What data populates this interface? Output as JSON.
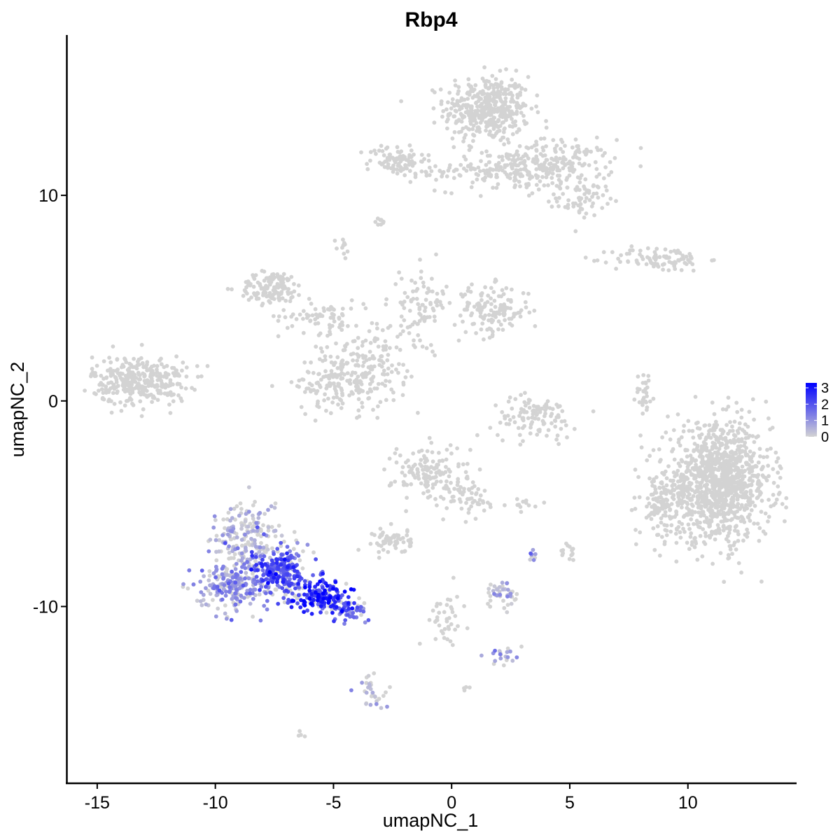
{
  "chart_data": {
    "type": "scatter",
    "title": "Rbp4",
    "xlabel": "umapNC_1",
    "ylabel": "umapNC_2",
    "xlim": [
      -16.3,
      14.6
    ],
    "ylim": [
      -18.6,
      17.8
    ],
    "x_ticks": [
      -15,
      -10,
      -5,
      0,
      5,
      10
    ],
    "x_tick_labels": [
      "-15",
      "-10",
      "-5",
      "0",
      "5",
      "10"
    ],
    "y_ticks": [
      -10,
      0,
      10
    ],
    "y_tick_labels": [
      "-10",
      "0",
      "10"
    ],
    "grid": false,
    "legend": {
      "position": "right",
      "type": "colorbar",
      "min": 0,
      "max": 3.3,
      "ticks": [
        0,
        1,
        2,
        3
      ],
      "tick_labels": [
        "0",
        "1",
        "2",
        "3"
      ],
      "low_color": "#D3D3D3",
      "high_color": "#0000FF"
    },
    "point_color_low": "#D3D3D3",
    "point_color_high": "#0000FF",
    "clusters": [
      {
        "cx": 1.5,
        "cy": 14.2,
        "sx": 0.9,
        "sy": 0.8,
        "n": 420,
        "expr": 0
      },
      {
        "cx": 4.4,
        "cy": 11.5,
        "sx": 1.2,
        "sy": 0.6,
        "n": 200,
        "expr": 0
      },
      {
        "cx": 5.5,
        "cy": 9.8,
        "sx": 0.5,
        "sy": 0.4,
        "n": 60,
        "expr": 0
      },
      {
        "cx": 2.2,
        "cy": 11.2,
        "sx": 1.4,
        "sy": 0.5,
        "n": 120,
        "expr": 0
      },
      {
        "cx": -2.3,
        "cy": 11.7,
        "sx": 0.6,
        "sy": 0.4,
        "n": 90,
        "expr": 0
      },
      {
        "cx": -0.3,
        "cy": 11.2,
        "sx": 0.5,
        "sy": 0.2,
        "n": 25,
        "expr": 0
      },
      {
        "cx": -3.0,
        "cy": 8.7,
        "sx": 0.15,
        "sy": 0.1,
        "n": 8,
        "expr": 0
      },
      {
        "cx": -4.6,
        "cy": 7.4,
        "sx": 0.15,
        "sy": 0.3,
        "n": 10,
        "expr": 0
      },
      {
        "cx": 8.8,
        "cy": 6.9,
        "sx": 1.0,
        "sy": 0.3,
        "n": 90,
        "expr": 0
      },
      {
        "cx": -7.6,
        "cy": 5.5,
        "sx": 0.7,
        "sy": 0.4,
        "n": 130,
        "expr": 0
      },
      {
        "cx": -5.5,
        "cy": 4.1,
        "sx": 0.9,
        "sy": 0.4,
        "n": 70,
        "expr": 0
      },
      {
        "cx": -1.2,
        "cy": 4.8,
        "sx": 0.5,
        "sy": 0.9,
        "n": 80,
        "expr": 0
      },
      {
        "cx": 1.7,
        "cy": 4.4,
        "sx": 0.8,
        "sy": 0.6,
        "n": 140,
        "expr": 0
      },
      {
        "cx": -3.3,
        "cy": 2.3,
        "sx": 0.9,
        "sy": 1.0,
        "n": 110,
        "expr": 0
      },
      {
        "cx": -4.6,
        "cy": 0.9,
        "sx": 1.0,
        "sy": 0.7,
        "n": 180,
        "expr": 0
      },
      {
        "cx": -13.2,
        "cy": 1.0,
        "sx": 1.0,
        "sy": 0.6,
        "n": 330,
        "expr": 0
      },
      {
        "cx": 3.5,
        "cy": -0.8,
        "sx": 0.9,
        "sy": 0.5,
        "n": 110,
        "expr": 0
      },
      {
        "cx": 8.2,
        "cy": 0.3,
        "sx": 0.2,
        "sy": 0.6,
        "n": 30,
        "expr": 0
      },
      {
        "cx": 11.3,
        "cy": -4.0,
        "sx": 1.1,
        "sy": 1.4,
        "n": 1100,
        "expr": 0
      },
      {
        "cx": 9.0,
        "cy": -5.0,
        "sx": 0.5,
        "sy": 0.8,
        "n": 120,
        "expr": 0
      },
      {
        "cx": -0.9,
        "cy": -3.5,
        "sx": 0.8,
        "sy": 0.7,
        "n": 150,
        "expr": 0
      },
      {
        "cx": 0.8,
        "cy": -4.8,
        "sx": 0.5,
        "sy": 0.6,
        "n": 50,
        "expr": 0
      },
      {
        "cx": -2.5,
        "cy": -6.8,
        "sx": 0.4,
        "sy": 0.3,
        "n": 60,
        "expr": 0
      },
      {
        "cx": 3.0,
        "cy": -5.0,
        "sx": 0.3,
        "sy": 0.15,
        "n": 12,
        "expr": 0
      },
      {
        "cx": 5.0,
        "cy": -7.5,
        "sx": 0.2,
        "sy": 0.3,
        "n": 15,
        "expr": 0
      },
      {
        "cx": 2.2,
        "cy": -9.4,
        "sx": 0.4,
        "sy": 0.3,
        "n": 45,
        "expr": 0.25
      },
      {
        "cx": 3.4,
        "cy": -7.5,
        "sx": 0.1,
        "sy": 0.2,
        "n": 8,
        "expr": 0.5
      },
      {
        "cx": 2.2,
        "cy": -12.4,
        "sx": 0.3,
        "sy": 0.2,
        "n": 20,
        "expr": 0.6
      },
      {
        "cx": -0.3,
        "cy": -10.6,
        "sx": 0.4,
        "sy": 0.8,
        "n": 40,
        "expr": 0
      },
      {
        "cx": -3.5,
        "cy": -14.2,
        "sx": 0.3,
        "sy": 0.5,
        "n": 30,
        "expr": 0.15
      },
      {
        "cx": -6.3,
        "cy": -16.2,
        "sx": 0.1,
        "sy": 0.1,
        "n": 4,
        "expr": 0
      },
      {
        "cx": 0.6,
        "cy": -14.0,
        "sx": 0.1,
        "sy": 0.1,
        "n": 4,
        "expr": 0
      },
      {
        "cx": -8.7,
        "cy": -6.7,
        "sx": 0.8,
        "sy": 0.9,
        "n": 210,
        "expr": 0.3
      },
      {
        "cx": -9.2,
        "cy": -8.9,
        "sx": 0.7,
        "sy": 0.6,
        "n": 220,
        "expr": 0.9
      },
      {
        "cx": -7.3,
        "cy": -8.3,
        "sx": 0.6,
        "sy": 0.6,
        "n": 230,
        "expr": 1.9
      },
      {
        "cx": -5.6,
        "cy": -9.5,
        "sx": 0.7,
        "sy": 0.4,
        "n": 170,
        "expr": 2.5
      },
      {
        "cx": -4.3,
        "cy": -10.2,
        "sx": 0.4,
        "sy": 0.25,
        "n": 45,
        "expr": 1.6
      }
    ]
  }
}
